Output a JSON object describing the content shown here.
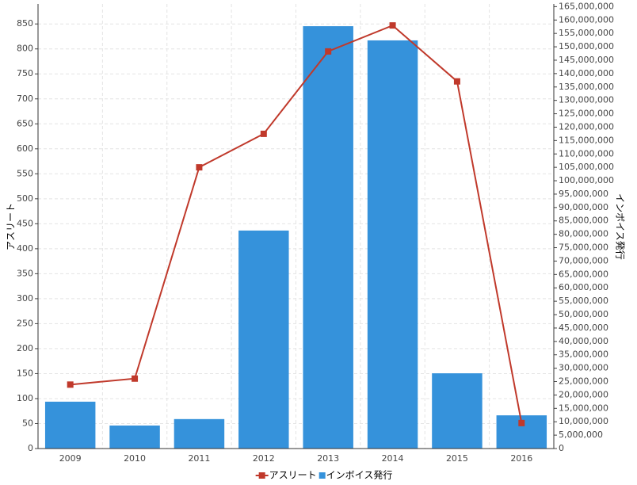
{
  "chart_data": {
    "type": "bar",
    "categories": [
      "2009",
      "2010",
      "2011",
      "2012",
      "2013",
      "2014",
      "2015",
      "2016"
    ],
    "series": [
      {
        "name": "アスリート",
        "type": "line",
        "color": "#c0392b",
        "axis": "y",
        "values": [
          128,
          140,
          563,
          630,
          795,
          847,
          735,
          51
        ]
      },
      {
        "name": "インボイス発行",
        "type": "bar",
        "color": "#3592db",
        "axis": "y2",
        "values": [
          17500000,
          8600000,
          11000000,
          81400000,
          157700000,
          152400000,
          28100000,
          12400000
        ]
      }
    ],
    "y_label": "アスリート",
    "y2_label": "インボイス発行",
    "ylim": [
      0,
      890
    ],
    "yticks": [
      0,
      50,
      100,
      150,
      200,
      250,
      300,
      350,
      400,
      450,
      500,
      550,
      600,
      650,
      700,
      750,
      800,
      850
    ],
    "y2lim": [
      0,
      166000000
    ],
    "y2ticks": [
      {
        "value": 0,
        "label": "0"
      },
      {
        "value": 5000000,
        "label": "5,000,000"
      },
      {
        "value": 10000000,
        "label": "10,000,000"
      },
      {
        "value": 15000000,
        "label": "15,000,000"
      },
      {
        "value": 20000000,
        "label": "20,000,000"
      },
      {
        "value": 25000000,
        "label": "25,000,000"
      },
      {
        "value": 30000000,
        "label": "30,000,000"
      },
      {
        "value": 35000000,
        "label": "35,000,000"
      },
      {
        "value": 40000000,
        "label": "40,000,000"
      },
      {
        "value": 45000000,
        "label": "45,000,000"
      },
      {
        "value": 50000000,
        "label": "50,000,000"
      },
      {
        "value": 55000000,
        "label": "55,000,000"
      },
      {
        "value": 60000000,
        "label": "60,000,000"
      },
      {
        "value": 65000000,
        "label": "65,000,000"
      },
      {
        "value": 70000000,
        "label": "70,000,000"
      },
      {
        "value": 75000000,
        "label": "75,000,000"
      },
      {
        "value": 80000000,
        "label": "80,000,000"
      },
      {
        "value": 85000000,
        "label": "85,000,000"
      },
      {
        "value": 90000000,
        "label": "90,000,000"
      },
      {
        "value": 95000000,
        "label": "95,000,000"
      },
      {
        "value": 100000000,
        "label": "100,000,000"
      },
      {
        "value": 105000000,
        "label": "105,000,000"
      },
      {
        "value": 110000000,
        "label": "110,000,000"
      },
      {
        "value": 115000000,
        "label": "115,000,000"
      },
      {
        "value": 120000000,
        "label": "120,000,000"
      },
      {
        "value": 125000000,
        "label": "125,000,000"
      },
      {
        "value": 130000000,
        "label": "130,000,000"
      },
      {
        "value": 135000000,
        "label": "135,000,000"
      },
      {
        "value": 140000000,
        "label": "140,000,000"
      },
      {
        "value": 145000000,
        "label": "145,000,000"
      },
      {
        "value": 150000000,
        "label": "150,000,000"
      },
      {
        "value": 155000000,
        "label": "155,000,000"
      },
      {
        "value": 160000000,
        "label": "160,000,000"
      },
      {
        "value": 165000000,
        "label": "165,000,000"
      }
    ],
    "grid": true,
    "legend": "bottom"
  }
}
